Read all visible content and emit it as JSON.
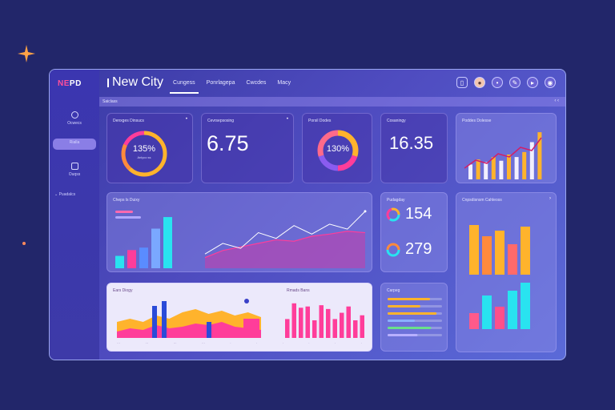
{
  "app": {
    "logo_prefix": "NE",
    "logo_suffix": "PD",
    "title": "New City"
  },
  "tabs": [
    {
      "label": "Cungess",
      "active": true
    },
    {
      "label": "Ponrlagepa"
    },
    {
      "label": "Cwcdes"
    },
    {
      "label": "Macy"
    }
  ],
  "sidebar": {
    "items": [
      {
        "label": "Ocwecs"
      },
      {
        "label": "Rialla",
        "active": true
      },
      {
        "label": "Ouqss"
      }
    ],
    "section": "Puadalcs"
  },
  "subbar": {
    "label": "Saiclass",
    "right": "‹  ‹"
  },
  "cards": {
    "c1": {
      "label": "Denxges Dinsucs",
      "value": "135%",
      "sub": "Anlyco ss"
    },
    "c2": {
      "label": "Cevrsepsosing",
      "value": "6.75"
    },
    "c3": {
      "label": "Porsil Dodes",
      "value": "130%"
    },
    "c4": {
      "label": "Cosaningy",
      "value": "16.35"
    },
    "c5": {
      "label": "Poddes Dolesse"
    },
    "c6": {
      "label": "Cheps ls Duixy"
    },
    "c7": {
      "label": "Pudagday",
      "value_a": "154",
      "value_b": "279"
    },
    "c8": {
      "label": "Cnpsdisnsm Cahleoss"
    },
    "c9": {
      "label": "Ears Diogy",
      "label2": "Rmads Bans"
    },
    "c10": {
      "label": "Carpeg"
    }
  },
  "colors": {
    "pink": "#ff3d9a",
    "yellow": "#ffb32c",
    "cyan": "#29e3f0",
    "blue": "#2a4bd8",
    "purple": "#8a5cf0",
    "orange": "#ff8a3c"
  },
  "chart_data": [
    {
      "type": "bar",
      "name": "Cheps ls Duixy",
      "values": [
        15,
        22,
        25,
        48,
        62
      ]
    },
    {
      "type": "line",
      "name": "Cheps ls Duixy",
      "series": [
        {
          "values": [
            20,
            35,
            28,
            50,
            42,
            60,
            48,
            62,
            55,
            80
          ]
        },
        {
          "values": [
            15,
            25,
            30,
            35,
            40,
            38,
            45,
            48,
            52,
            50
          ]
        }
      ]
    },
    {
      "type": "bar",
      "name": "Poddes Dolesse",
      "values": [
        12,
        16,
        14,
        18,
        15,
        20,
        18,
        22,
        30,
        38
      ]
    },
    {
      "type": "bar",
      "name": "Cnpsdisnsm Cahleoss",
      "series": [
        {
          "values": [
            62,
            48,
            55,
            38,
            60
          ]
        },
        {
          "values": [
            20,
            42,
            28,
            48,
            58
          ]
        }
      ]
    },
    {
      "type": "bar",
      "name": "Rmads Bans",
      "values": [
        30,
        55,
        48,
        50,
        28,
        52,
        46,
        30,
        40,
        50,
        28,
        36
      ]
    }
  ]
}
